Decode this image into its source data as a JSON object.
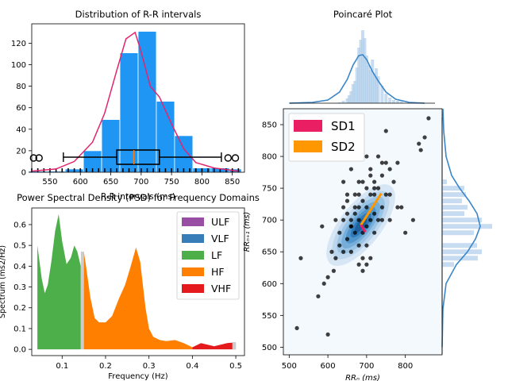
{
  "charts": {
    "histogram": {
      "title": "Distribution of R-R intervals",
      "xlabel": "R-R intervals (ms)",
      "xticks": [
        "550",
        "600",
        "650",
        "700",
        "750",
        "800",
        "850"
      ],
      "yticks": [
        "0",
        "20",
        "40",
        "60",
        "80",
        "100",
        "120"
      ],
      "color": "#1f96f3",
      "kde_color": "#e0266f"
    },
    "psd": {
      "title": "Power Spectral Density (PSD) for Frequency Domains",
      "xlabel": "Frequency (Hz)",
      "ylabel": "Spectrum (ms2/Hz)",
      "xticks": [
        "0.1",
        "0.2",
        "0.3",
        "0.4",
        "0.5"
      ],
      "yticks": [
        "0.0",
        "0.1",
        "0.2",
        "0.3",
        "0.4",
        "0.5",
        "0.6"
      ],
      "legend": [
        {
          "label": "ULF",
          "color": "#984ea3"
        },
        {
          "label": "VLF",
          "color": "#377eb8"
        },
        {
          "label": "LF",
          "color": "#4daf4a"
        },
        {
          "label": "HF",
          "color": "#ff7f00"
        },
        {
          "label": "VHF",
          "color": "#e41a1c"
        }
      ]
    },
    "poincare": {
      "title": "Poincaré Plot",
      "xlabel": "RRₙ (ms)",
      "ylabel": "RRₙ₊₁ (ms)",
      "xticks": [
        "500",
        "600",
        "700",
        "800"
      ],
      "yticks": [
        "500",
        "550",
        "600",
        "650",
        "700",
        "750",
        "800",
        "850"
      ],
      "legend": [
        {
          "label": "SD1",
          "color": "#e91e63"
        },
        {
          "label": "SD2",
          "color": "#ff9800"
        }
      ]
    }
  },
  "chart_data": [
    {
      "type": "bar",
      "title": "Distribution of R-R intervals",
      "xlabel": "R-R intervals (ms)",
      "bin_edges": [
        515,
        545,
        575,
        605,
        635,
        665,
        695,
        725,
        755,
        785,
        815,
        845,
        865
      ],
      "values": [
        1,
        1,
        3,
        20,
        49,
        111,
        131,
        66,
        34,
        4,
        4,
        3
      ],
      "xlim": [
        520,
        870
      ],
      "ylim": [
        0,
        138
      ],
      "kde": {
        "x": [
          520,
          560,
          590,
          620,
          640,
          660,
          675,
          690,
          700,
          715,
          730,
          750,
          770,
          790,
          820,
          860
        ],
        "y": [
          1,
          3,
          10,
          28,
          55,
          95,
          124,
          130,
          112,
          80,
          70,
          45,
          22,
          9,
          4,
          1
        ]
      },
      "boxplot": {
        "whisker_low": 572,
        "q1": 660,
        "median": 688,
        "q3": 730,
        "whisker_high": 832,
        "outliers": [
          523,
          532,
          843,
          855
        ]
      }
    },
    {
      "type": "area",
      "title": "Power Spectral Density (PSD) for Frequency Domains",
      "xlabel": "Frequency (Hz)",
      "ylabel": "Spectrum (ms2/Hz)",
      "xlim": [
        0.03,
        0.52
      ],
      "ylim": [
        -0.03,
        0.68
      ],
      "series": [
        {
          "name": "LF",
          "color": "#4daf4a",
          "x": [
            0.043,
            0.053,
            0.06,
            0.067,
            0.075,
            0.084,
            0.092,
            0.1,
            0.11,
            0.12,
            0.128,
            0.135,
            0.143
          ],
          "y": [
            0.5,
            0.34,
            0.27,
            0.31,
            0.42,
            0.57,
            0.65,
            0.52,
            0.41,
            0.44,
            0.5,
            0.47,
            0.4
          ]
        },
        {
          "name": "HF",
          "color": "#ff7f00",
          "x": [
            0.15,
            0.155,
            0.165,
            0.175,
            0.185,
            0.2,
            0.215,
            0.23,
            0.245,
            0.258,
            0.27,
            0.28,
            0.292,
            0.3,
            0.31,
            0.325,
            0.34,
            0.36,
            0.38,
            0.39,
            0.4
          ],
          "y": [
            0.47,
            0.4,
            0.25,
            0.15,
            0.13,
            0.13,
            0.16,
            0.24,
            0.31,
            0.4,
            0.49,
            0.42,
            0.2,
            0.1,
            0.06,
            0.045,
            0.04,
            0.045,
            0.03,
            0.02,
            0.01
          ]
        },
        {
          "name": "VHF",
          "color": "#e41a1c",
          "x": [
            0.4,
            0.41,
            0.42,
            0.43,
            0.44,
            0.45,
            0.46,
            0.47,
            0.48,
            0.49,
            0.5
          ],
          "y": [
            0.01,
            0.02,
            0.03,
            0.025,
            0.02,
            0.015,
            0.02,
            0.025,
            0.03,
            0.032,
            0.03
          ]
        }
      ]
    },
    {
      "type": "scatter",
      "title": "Poincaré Plot",
      "xlabel": "RRₙ (ms)",
      "ylabel": "RRₙ₊₁ (ms)",
      "xlim": [
        485,
        895
      ],
      "ylim": [
        488,
        875
      ],
      "center": [
        685,
        692
      ],
      "sd1": {
        "from": [
          685,
          692
        ],
        "to": [
          697,
          681
        ]
      },
      "sd2": {
        "from": [
          685,
          692
        ],
        "to": [
          738,
          742
        ]
      },
      "x": [
        520,
        600,
        530,
        575,
        585,
        590,
        600,
        610,
        615,
        620,
        620,
        630,
        630,
        640,
        640,
        650,
        650,
        650,
        660,
        660,
        660,
        670,
        670,
        670,
        680,
        680,
        680,
        690,
        690,
        690,
        700,
        700,
        700,
        710,
        710,
        710,
        720,
        720,
        720,
        730,
        730,
        740,
        740,
        750,
        750,
        760,
        760,
        770,
        780,
        790,
        800,
        820,
        835,
        840,
        850,
        860,
        640,
        650,
        660,
        670,
        680,
        690,
        700,
        710,
        720,
        730,
        740,
        750,
        680,
        690,
        700,
        710,
        640,
        660,
        680,
        700,
        720,
        740,
        760,
        780
      ],
      "y": [
        530,
        520,
        640,
        580,
        690,
        600,
        610,
        650,
        620,
        640,
        700,
        660,
        680,
        700,
        650,
        710,
        670,
        730,
        690,
        700,
        650,
        720,
        710,
        680,
        700,
        740,
        760,
        730,
        680,
        640,
        720,
        750,
        690,
        700,
        740,
        780,
        710,
        760,
        740,
        750,
        700,
        770,
        720,
        790,
        740,
        780,
        740,
        760,
        790,
        720,
        680,
        700,
        820,
        810,
        830,
        860,
        760,
        740,
        780,
        740,
        720,
        760,
        800,
        770,
        750,
        800,
        790,
        840,
        630,
        620,
        630,
        640,
        720,
        690,
        660,
        660,
        680,
        700,
        700,
        720
      ]
    }
  ]
}
